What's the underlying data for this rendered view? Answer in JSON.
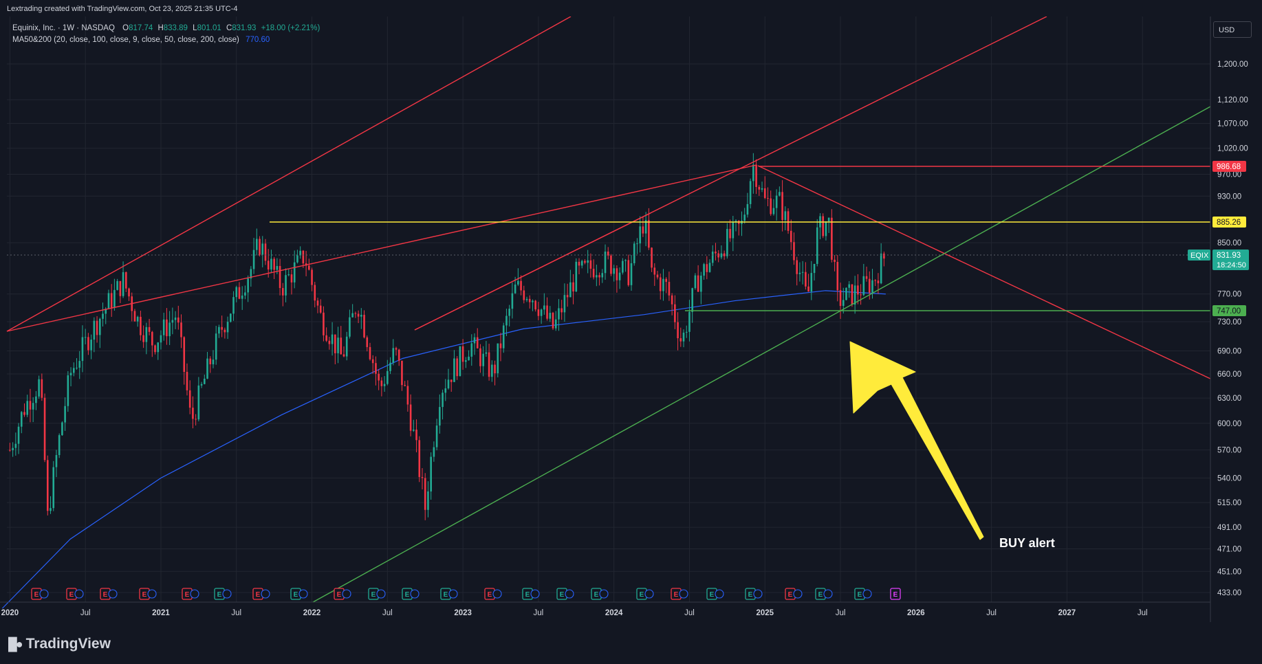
{
  "credit": "Lextrading created with TradingView.com, Oct 23, 2025 21:35 UTC-4",
  "legend": {
    "symbol_line": "Equinix, Inc. · 1W · NASDAQ",
    "o_label": "O",
    "o_value": "817.74",
    "h_label": "H",
    "h_value": "833.89",
    "l_label": "L",
    "l_value": "801.01",
    "c_label": "C",
    "c_value": "831.93",
    "change": "+18.00 (+2.21%)",
    "ma_label": "MA50&200 (20, close, 100, close, 9, close, 50, close, 200, close)",
    "ma_value": "770.60"
  },
  "currency_button": "USD",
  "annotation": "BUY alert",
  "brand": "TradingView",
  "colors": {
    "up": "#22ab94",
    "down": "#f23645",
    "ma": "#2962ff",
    "red_line": "#f23645",
    "green_line": "#4caf50",
    "yellow_line": "#ffeb3b",
    "arrow": "#ffeb3b",
    "last_price_bg": "#22ab94"
  },
  "chart_data": {
    "type": "candlestick",
    "timeframe": "1W",
    "symbol": "EQIX",
    "x_axis_labels": [
      "2020",
      "Jul",
      "2021",
      "Jul",
      "2022",
      "Jul",
      "2023",
      "Jul",
      "2024",
      "Jul",
      "2025",
      "Jul",
      "2026",
      "Jul",
      "2027",
      "Jul"
    ],
    "y_axis_ticks": [
      "1,200.00",
      "1,120.00",
      "1,070.00",
      "1,020.00",
      "970.00",
      "930.00",
      "850.00",
      "770.00",
      "730.00",
      "690.00",
      "660.00",
      "630.00",
      "600.00",
      "570.00",
      "540.00",
      "515.00",
      "491.00",
      "471.00",
      "451.00",
      "433.00"
    ],
    "y_scale": "log",
    "ylim": [
      420,
      1300
    ],
    "price_path": [
      [
        2020.0,
        570
      ],
      [
        2020.1,
        620
      ],
      [
        2020.2,
        650
      ],
      [
        2020.25,
        500
      ],
      [
        2020.4,
        660
      ],
      [
        2020.55,
        720
      ],
      [
        2020.75,
        790
      ],
      [
        2020.85,
        730
      ],
      [
        2020.95,
        700
      ],
      [
        2021.1,
        740
      ],
      [
        2021.2,
        600
      ],
      [
        2021.4,
        720
      ],
      [
        2021.6,
        810
      ],
      [
        2021.65,
        850
      ],
      [
        2021.8,
        780
      ],
      [
        2021.95,
        830
      ],
      [
        2022.05,
        740
      ],
      [
        2022.2,
        680
      ],
      [
        2022.3,
        760
      ],
      [
        2022.45,
        640
      ],
      [
        2022.55,
        690
      ],
      [
        2022.65,
        610
      ],
      [
        2022.75,
        510
      ],
      [
        2022.85,
        640
      ],
      [
        2023.05,
        700
      ],
      [
        2023.2,
        660
      ],
      [
        2023.35,
        780
      ],
      [
        2023.45,
        770
      ],
      [
        2023.6,
        720
      ],
      [
        2023.75,
        800
      ],
      [
        2023.95,
        820
      ],
      [
        2024.1,
        800
      ],
      [
        2024.2,
        890
      ],
      [
        2024.25,
        800
      ],
      [
        2024.35,
        780
      ],
      [
        2024.45,
        700
      ],
      [
        2024.55,
        790
      ],
      [
        2024.7,
        840
      ],
      [
        2024.85,
        880
      ],
      [
        2024.92,
        990
      ],
      [
        2025.0,
        920
      ],
      [
        2025.1,
        920
      ],
      [
        2025.2,
        830
      ],
      [
        2025.28,
        760
      ],
      [
        2025.35,
        870
      ],
      [
        2025.42,
        890
      ],
      [
        2025.48,
        760
      ],
      [
        2025.58,
        770
      ],
      [
        2025.72,
        790
      ],
      [
        2025.8,
        832
      ]
    ],
    "ma200_path": [
      [
        2019.95,
        420
      ],
      [
        2020.4,
        480
      ],
      [
        2021.0,
        540
      ],
      [
        2021.8,
        610
      ],
      [
        2022.6,
        680
      ],
      [
        2023.4,
        720
      ],
      [
        2024.2,
        740
      ],
      [
        2024.8,
        760
      ],
      [
        2025.4,
        775
      ],
      [
        2025.8,
        770
      ]
    ],
    "last_price": {
      "symbol": "EQIX",
      "value": "831.93",
      "countdown": "18:24:50"
    },
    "horizontal_levels": [
      {
        "value": "986.68",
        "color": "red"
      },
      {
        "value": "885.26",
        "color": "yellow"
      },
      {
        "value": "747.00",
        "color": "green"
      }
    ],
    "earnings_markers": [
      "E",
      "E",
      "E",
      "E",
      "E",
      "E",
      "E",
      "E",
      "E",
      "E",
      "E",
      "E",
      "E",
      "E",
      "E",
      "E",
      "E",
      "E",
      "E",
      "E",
      "E",
      "E",
      "E",
      "E"
    ],
    "earnings_marker_types": [
      "r",
      "r",
      "r",
      "r",
      "r",
      "g",
      "r",
      "g",
      "r",
      "g",
      "g",
      "g",
      "r",
      "g",
      "g",
      "g",
      "g",
      "r",
      "g",
      "g",
      "r",
      "g",
      "g",
      "p"
    ]
  }
}
